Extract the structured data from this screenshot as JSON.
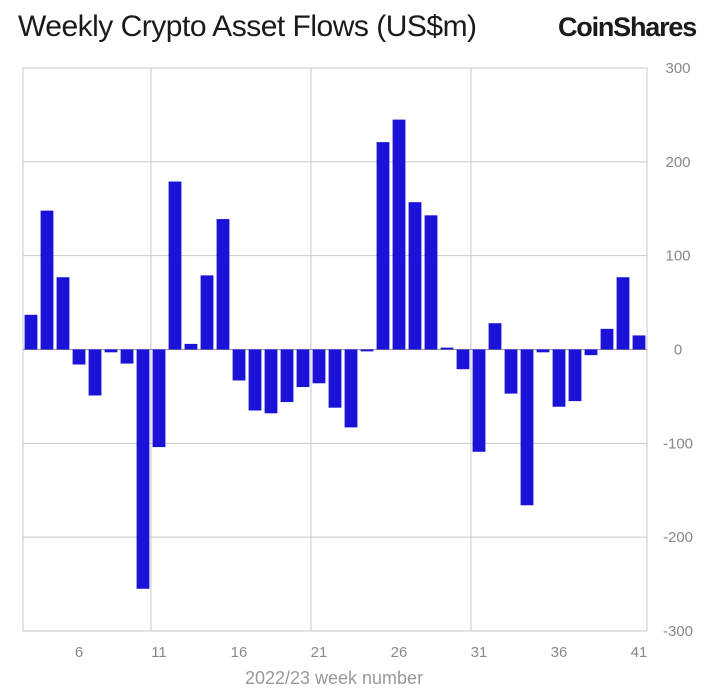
{
  "header": {
    "title": "Weekly Crypto Asset Flows (US$m)",
    "logo": "CoinShares"
  },
  "colors": {
    "bar": "#1a12d6",
    "grid": "#c8c8c8"
  },
  "chart_data": {
    "type": "bar",
    "title": "Weekly Crypto Asset Flows (US$m)",
    "xlabel": "2022/23 week number",
    "ylabel": "",
    "ylim": [
      -300,
      300
    ],
    "yticks": [
      300,
      200,
      100,
      0,
      -100,
      -200,
      -300
    ],
    "xtick_labels": [
      "6",
      "11",
      "16",
      "21",
      "26",
      "31",
      "36",
      "41"
    ],
    "grid": true,
    "y_axis_position": "right",
    "x": [
      3,
      4,
      5,
      6,
      7,
      8,
      9,
      10,
      11,
      12,
      13,
      14,
      15,
      16,
      17,
      18,
      19,
      20,
      21,
      22,
      23,
      24,
      25,
      26,
      27,
      28,
      29,
      30,
      31,
      32,
      33,
      34,
      35,
      36,
      37,
      38,
      39,
      40,
      41
    ],
    "values": [
      37,
      148,
      77,
      -16,
      -49,
      -3,
      -15,
      -255,
      -104,
      179,
      6,
      79,
      139,
      -33,
      -65,
      -68,
      -56,
      -40,
      -36,
      -62,
      -83,
      -2,
      221,
      245,
      157,
      143,
      2,
      -21,
      -109,
      28,
      -47,
      -166,
      -3,
      -61,
      -55,
      -6,
      22,
      77,
      15
    ]
  }
}
